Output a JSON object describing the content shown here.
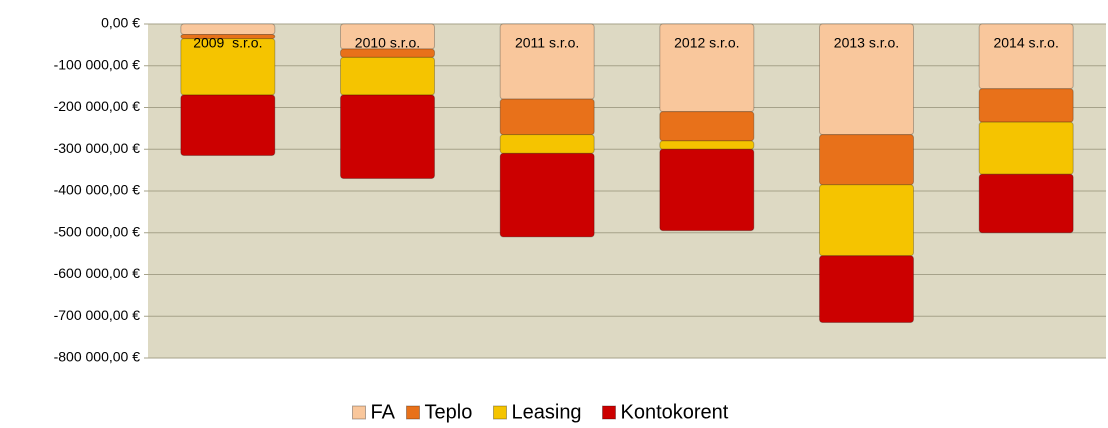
{
  "chart_data": {
    "type": "stacked_bar",
    "categories": [
      "2009  s.r.o.",
      "2010 s.r.o.",
      "2011 s.r.o.",
      "2012 s.r.o.",
      "2013 s.r.o.",
      "2014 s.r.o."
    ],
    "series": [
      {
        "name": "FA",
        "color": "#f9c79c",
        "values": [
          -25000,
          -60000,
          -180000,
          -210000,
          -265000,
          -155000
        ]
      },
      {
        "name": "Teplo",
        "color": "#e8711a",
        "values": [
          -10000,
          -20000,
          -85000,
          -70000,
          -120000,
          -80000
        ]
      },
      {
        "name": "Leasing",
        "color": "#f5c400",
        "values": [
          -135000,
          -90000,
          -45000,
          -20000,
          -170000,
          -125000
        ]
      },
      {
        "name": "Kontokorent",
        "color": "#cc0000",
        "values": [
          -145000,
          -200000,
          -200000,
          -195000,
          -160000,
          -140000
        ]
      }
    ],
    "ylim": [
      -800000,
      0
    ],
    "yticks": [
      {
        "value": 0,
        "label": "0,00 €"
      },
      {
        "value": -100000,
        "label": "-100 000,00 €"
      },
      {
        "value": -200000,
        "label": "-200 000,00 €"
      },
      {
        "value": -300000,
        "label": "-300 000,00 €"
      },
      {
        "value": -400000,
        "label": "-400 000,00 €"
      },
      {
        "value": -500000,
        "label": "-500 000,00 €"
      },
      {
        "value": -600000,
        "label": "-600 000,00 €"
      },
      {
        "value": -700000,
        "label": "-700 000,00 €"
      },
      {
        "value": -800000,
        "label": "-800 000,00 €"
      }
    ],
    "grid": true
  }
}
